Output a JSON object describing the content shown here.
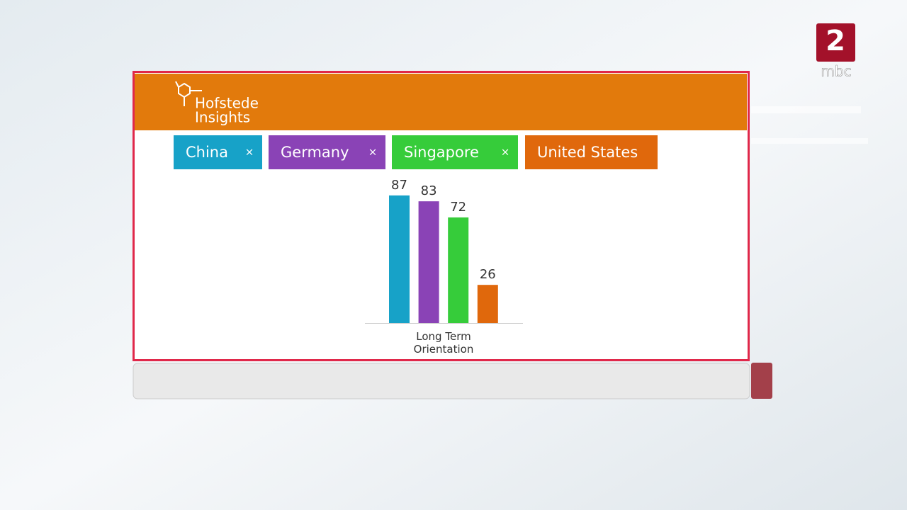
{
  "header": {
    "logo_lines": [
      "Hofstede",
      "Insights"
    ]
  },
  "chip_remove": "×",
  "channel": {
    "logo": "2",
    "name": "mbc"
  },
  "chart_data": {
    "type": "bar",
    "categories": [
      "Long Term Orientation"
    ],
    "series": [
      {
        "name": "China",
        "color": "#17a2c8",
        "values": [
          87
        ]
      },
      {
        "name": "Germany",
        "color": "#8a43b6",
        "values": [
          83
        ]
      },
      {
        "name": "Singapore",
        "color": "#36cc3a",
        "values": [
          72
        ]
      },
      {
        "name": "United States",
        "color": "#e0680c",
        "values": [
          26
        ]
      }
    ],
    "removable": [
      true,
      true,
      true,
      false
    ]
  }
}
